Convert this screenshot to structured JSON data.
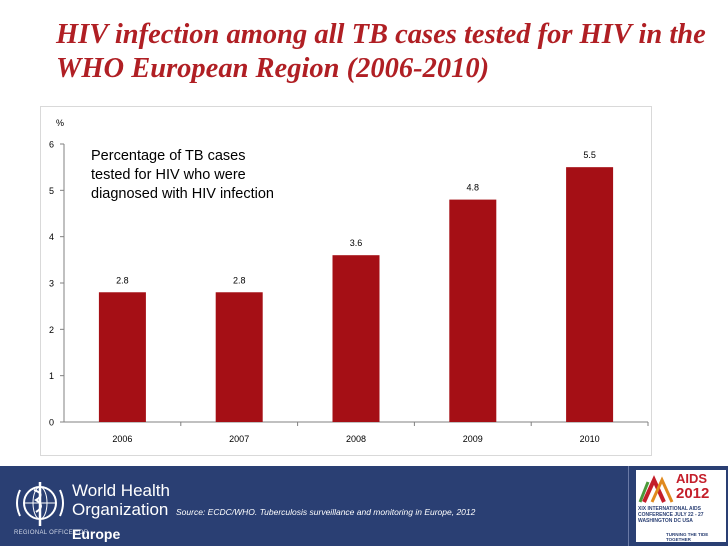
{
  "slide": {
    "title": "HIV infection among all TB cases tested for HIV in the WHO European Region (2006-2010)"
  },
  "chart_data": {
    "type": "bar",
    "title": "HIV infection among all TB cases tested for HIV in the WHO European Region (2006-2010)",
    "ylabel": "%",
    "xlabel": "",
    "categories": [
      "2006",
      "2007",
      "2008",
      "2009",
      "2010"
    ],
    "values": [
      2.8,
      2.8,
      3.6,
      4.8,
      5.5
    ],
    "value_labels": [
      "2.8",
      "2.8",
      "3.6",
      "4.8",
      "5.5"
    ],
    "ylim": [
      0,
      6
    ],
    "yticks": [
      "0",
      "1",
      "2",
      "3",
      "4",
      "5",
      "6"
    ],
    "annotation": "Percentage of TB cases\ntested for HIV who were\ndiagnosed with HIV infection",
    "bar_color": "#a50f15",
    "grid": false
  },
  "footer": {
    "org_line1": "World Health",
    "org_line2": "Organization",
    "region": "Europe",
    "org_small": "REGIONAL OFFICE FOR",
    "source": "Source: ECDC/WHO. Tuberculosis surveillance and monitoring in Europe, 2012",
    "aids_name": "AIDS",
    "aids_year": "2012",
    "aids_conference": "XIX INTERNATIONAL AIDS\nCONFERENCE JULY 22 - 27\nWASHINGTON DC USA",
    "aids_tagline": "TURNING THE TIDE TOGETHER",
    "background_color": "#2a3f73"
  }
}
